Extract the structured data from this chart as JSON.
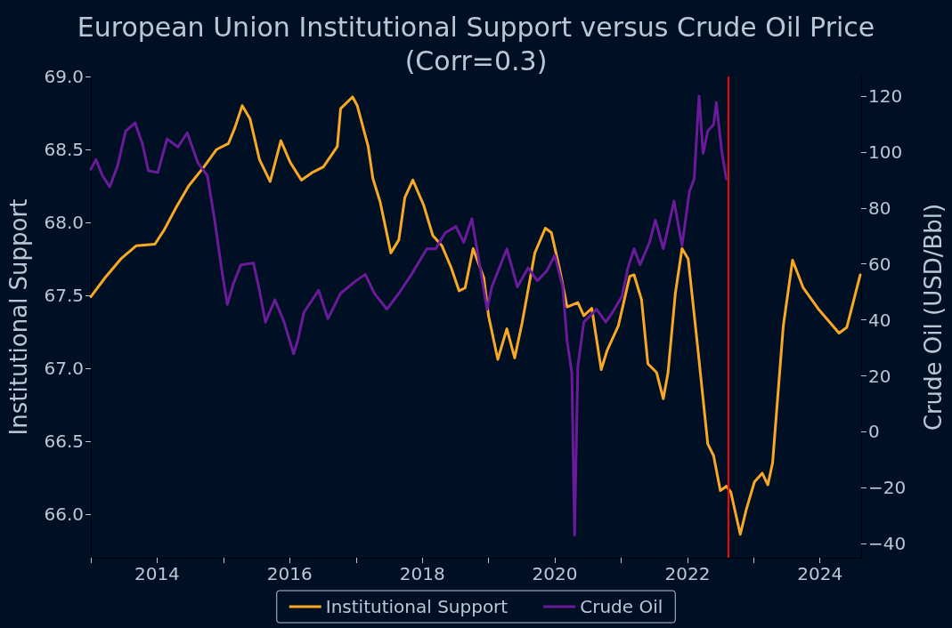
{
  "chart_data": {
    "type": "line",
    "title": "European Union Institutional Support versus Crude Oil Price\n(Corr=0.3)",
    "ylabel": "Institutional Support",
    "y2label": "Crude Oil (USD/Bbl)",
    "xlim": [
      "2013-01-01",
      "2024-08-15"
    ],
    "xticks": [
      {
        "value": "2013-01-01",
        "label": null
      },
      {
        "value": "2014-01-01",
        "label": "2014"
      },
      {
        "value": "2015-01-01",
        "label": null
      },
      {
        "value": "2016-01-01",
        "label": "2016"
      },
      {
        "value": "2017-01-01",
        "label": null
      },
      {
        "value": "2018-01-01",
        "label": "2018"
      },
      {
        "value": "2019-01-01",
        "label": null
      },
      {
        "value": "2020-01-01",
        "label": "2020"
      },
      {
        "value": "2021-01-01",
        "label": null
      },
      {
        "value": "2022-01-01",
        "label": "2022"
      },
      {
        "value": "2023-01-01",
        "label": null
      },
      {
        "value": "2024-01-01",
        "label": "2024"
      }
    ],
    "ylim": [
      65.7,
      69.0
    ],
    "yticks": [
      {
        "value": 66,
        "label": "66.0"
      },
      {
        "value": 66.5,
        "label": "66.5"
      },
      {
        "value": 67,
        "label": "67.0"
      },
      {
        "value": 67.5,
        "label": "67.5"
      },
      {
        "value": 68,
        "label": "68.0"
      },
      {
        "value": 68.5,
        "label": "68.5"
      },
      {
        "value": 69,
        "label": "69.0"
      }
    ],
    "y2lim": [
      -45,
      127
    ],
    "y2ticks": [
      {
        "value": -40,
        "label": "−40"
      },
      {
        "value": -20,
        "label": "−20"
      },
      0,
      20,
      40,
      60,
      80,
      100,
      120
    ],
    "grid": false,
    "legend": "bottom",
    "ref_lines": [
      {
        "axis": "x",
        "value": "2022-08-15",
        "color": "#ff0000"
      }
    ],
    "series": [
      {
        "name": "Institutional Support",
        "color": "#f9a825",
        "x": [
          "2013-01-01",
          "2013-03-20",
          "2013-06-16",
          "2013-09-09",
          "2013-12-20",
          "2014-02-10",
          "2014-04-15",
          "2014-06-24",
          "2014-09-16",
          "2014-11-25",
          "2015-01-29",
          "2015-03-06",
          "2015-04-15",
          "2015-05-28",
          "2015-07-19",
          "2015-09-16",
          "2015-11-14",
          "2016-01-05",
          "2016-03-06",
          "2016-05-03",
          "2016-07-05",
          "2016-09-20",
          "2016-10-08",
          "2016-12-13",
          "2017-01-08",
          "2017-03-09",
          "2017-04-04",
          "2017-05-14",
          "2017-07-12",
          "2017-08-25",
          "2017-09-27",
          "2017-11-10",
          "2018-01-08",
          "2018-02-28",
          "2018-04-19",
          "2018-06-09",
          "2018-07-23",
          "2018-08-25",
          "2018-10-08",
          "2018-12-06",
          "2019-01-01",
          "2019-02-21",
          "2019-04-12",
          "2019-05-25",
          "2019-07-05",
          "2019-09-13",
          "2019-11-10",
          "2019-12-13",
          "2020-01-26",
          "2020-03-09",
          "2020-05-07",
          "2020-06-09",
          "2020-07-23",
          "2020-09-13",
          "2020-10-15",
          "2020-12-16",
          "2021-02-17",
          "2021-03-13",
          "2021-04-23",
          "2021-05-28",
          "2021-07-15",
          "2021-08-21",
          "2021-09-16",
          "2021-10-26",
          "2021-12-02",
          "2022-01-05",
          "2022-02-25",
          "2022-04-23",
          "2022-05-25",
          "2022-07-01",
          "2022-08-03",
          "2022-08-28",
          "2022-10-19",
          "2022-11-21",
          "2023-01-05",
          "2023-02-17",
          "2023-03-20",
          "2023-04-15",
          "2023-06-13",
          "2023-08-03",
          "2023-10-01",
          "2023-12-27",
          "2024-04-15",
          "2024-05-28",
          "2024-08-10"
        ],
        "values": [
          67.49,
          67.62,
          67.75,
          67.84,
          67.85,
          67.95,
          68.1,
          68.25,
          68.38,
          68.5,
          68.54,
          68.65,
          68.8,
          68.71,
          68.43,
          68.28,
          68.56,
          68.41,
          68.29,
          68.34,
          68.38,
          68.52,
          68.78,
          68.86,
          68.8,
          68.52,
          68.3,
          68.14,
          67.79,
          67.88,
          68.17,
          68.29,
          68.12,
          67.91,
          67.84,
          67.69,
          67.53,
          67.55,
          67.82,
          67.62,
          67.36,
          67.06,
          67.27,
          67.07,
          67.31,
          67.79,
          67.96,
          67.93,
          67.69,
          67.42,
          67.45,
          67.36,
          67.41,
          66.99,
          67.12,
          67.29,
          67.63,
          67.64,
          67.47,
          67.03,
          66.97,
          66.79,
          66.97,
          67.51,
          67.82,
          67.75,
          67.16,
          66.48,
          66.4,
          66.16,
          66.19,
          66.15,
          65.86,
          66.03,
          66.22,
          66.28,
          66.2,
          66.35,
          67.29,
          67.74,
          67.55,
          67.4,
          67.24,
          67.28,
          67.64
        ]
      },
      {
        "name": "Crude Oil",
        "color": "#6a1b9a",
        "axis": "y2",
        "x": [
          "2013-01-01",
          "2013-01-29",
          "2013-03-06",
          "2013-04-15",
          "2013-05-28",
          "2013-07-12",
          "2013-09-02",
          "2013-10-12",
          "2013-11-14",
          "2014-01-05",
          "2014-02-25",
          "2014-04-26",
          "2014-06-16",
          "2014-08-14",
          "2014-10-05",
          "2014-11-14",
          "2014-12-27",
          "2015-01-23",
          "2015-02-25",
          "2015-04-08",
          "2015-06-16",
          "2015-07-19",
          "2015-08-21",
          "2015-10-12",
          "2015-12-02",
          "2016-01-23",
          "2016-02-14",
          "2016-03-20",
          "2016-06-09",
          "2016-07-30",
          "2016-10-08",
          "2017-01-01",
          "2017-02-21",
          "2017-04-12",
          "2017-06-20",
          "2017-08-25",
          "2017-11-03",
          "2018-01-26",
          "2018-03-16",
          "2018-05-07",
          "2018-07-05",
          "2018-08-18",
          "2018-10-01",
          "2018-11-10",
          "2018-12-24",
          "2019-01-19",
          "2019-04-12",
          "2019-06-09",
          "2019-08-07",
          "2019-09-27",
          "2019-11-18",
          "2020-01-01",
          "2020-02-14",
          "2020-03-09",
          "2020-04-04",
          "2020-04-19",
          "2020-05-07",
          "2020-06-09",
          "2020-08-18",
          "2020-10-08",
          "2020-11-14",
          "2021-01-05",
          "2021-02-07",
          "2021-03-13",
          "2021-04-15",
          "2021-06-06",
          "2021-07-08",
          "2021-08-21",
          "2021-10-19",
          "2021-12-02",
          "2022-01-12",
          "2022-02-07",
          "2022-03-06",
          "2022-03-28",
          "2022-04-23",
          "2022-05-25",
          "2022-06-09",
          "2022-07-08",
          "2022-08-03"
        ],
        "values": [
          93.9,
          97.3,
          91.6,
          87.6,
          95.0,
          107.5,
          110.4,
          103.0,
          93.3,
          92.7,
          104.7,
          101.8,
          106.9,
          96.1,
          91.6,
          75.7,
          56.3,
          45.5,
          52.9,
          59.7,
          60.3,
          50.6,
          39.2,
          47.2,
          39.2,
          27.9,
          32.4,
          42.7,
          50.6,
          40.4,
          49.5,
          54.0,
          56.3,
          49.5,
          43.8,
          49.5,
          56.3,
          65.4,
          65.4,
          71.1,
          73.4,
          67.7,
          76.2,
          60.9,
          43.8,
          51.8,
          65.4,
          51.8,
          58.6,
          54.0,
          57.5,
          63.1,
          51.8,
          32.4,
          21.0,
          -37.0,
          23.3,
          39.2,
          43.8,
          39.2,
          42.7,
          48.4,
          58.6,
          65.4,
          59.7,
          67.7,
          75.7,
          65.4,
          82.5,
          66.6,
          85.9,
          90.4,
          120.0,
          99.5,
          107.5,
          109.8,
          117.7,
          100.7,
          90.4
        ]
      }
    ]
  }
}
